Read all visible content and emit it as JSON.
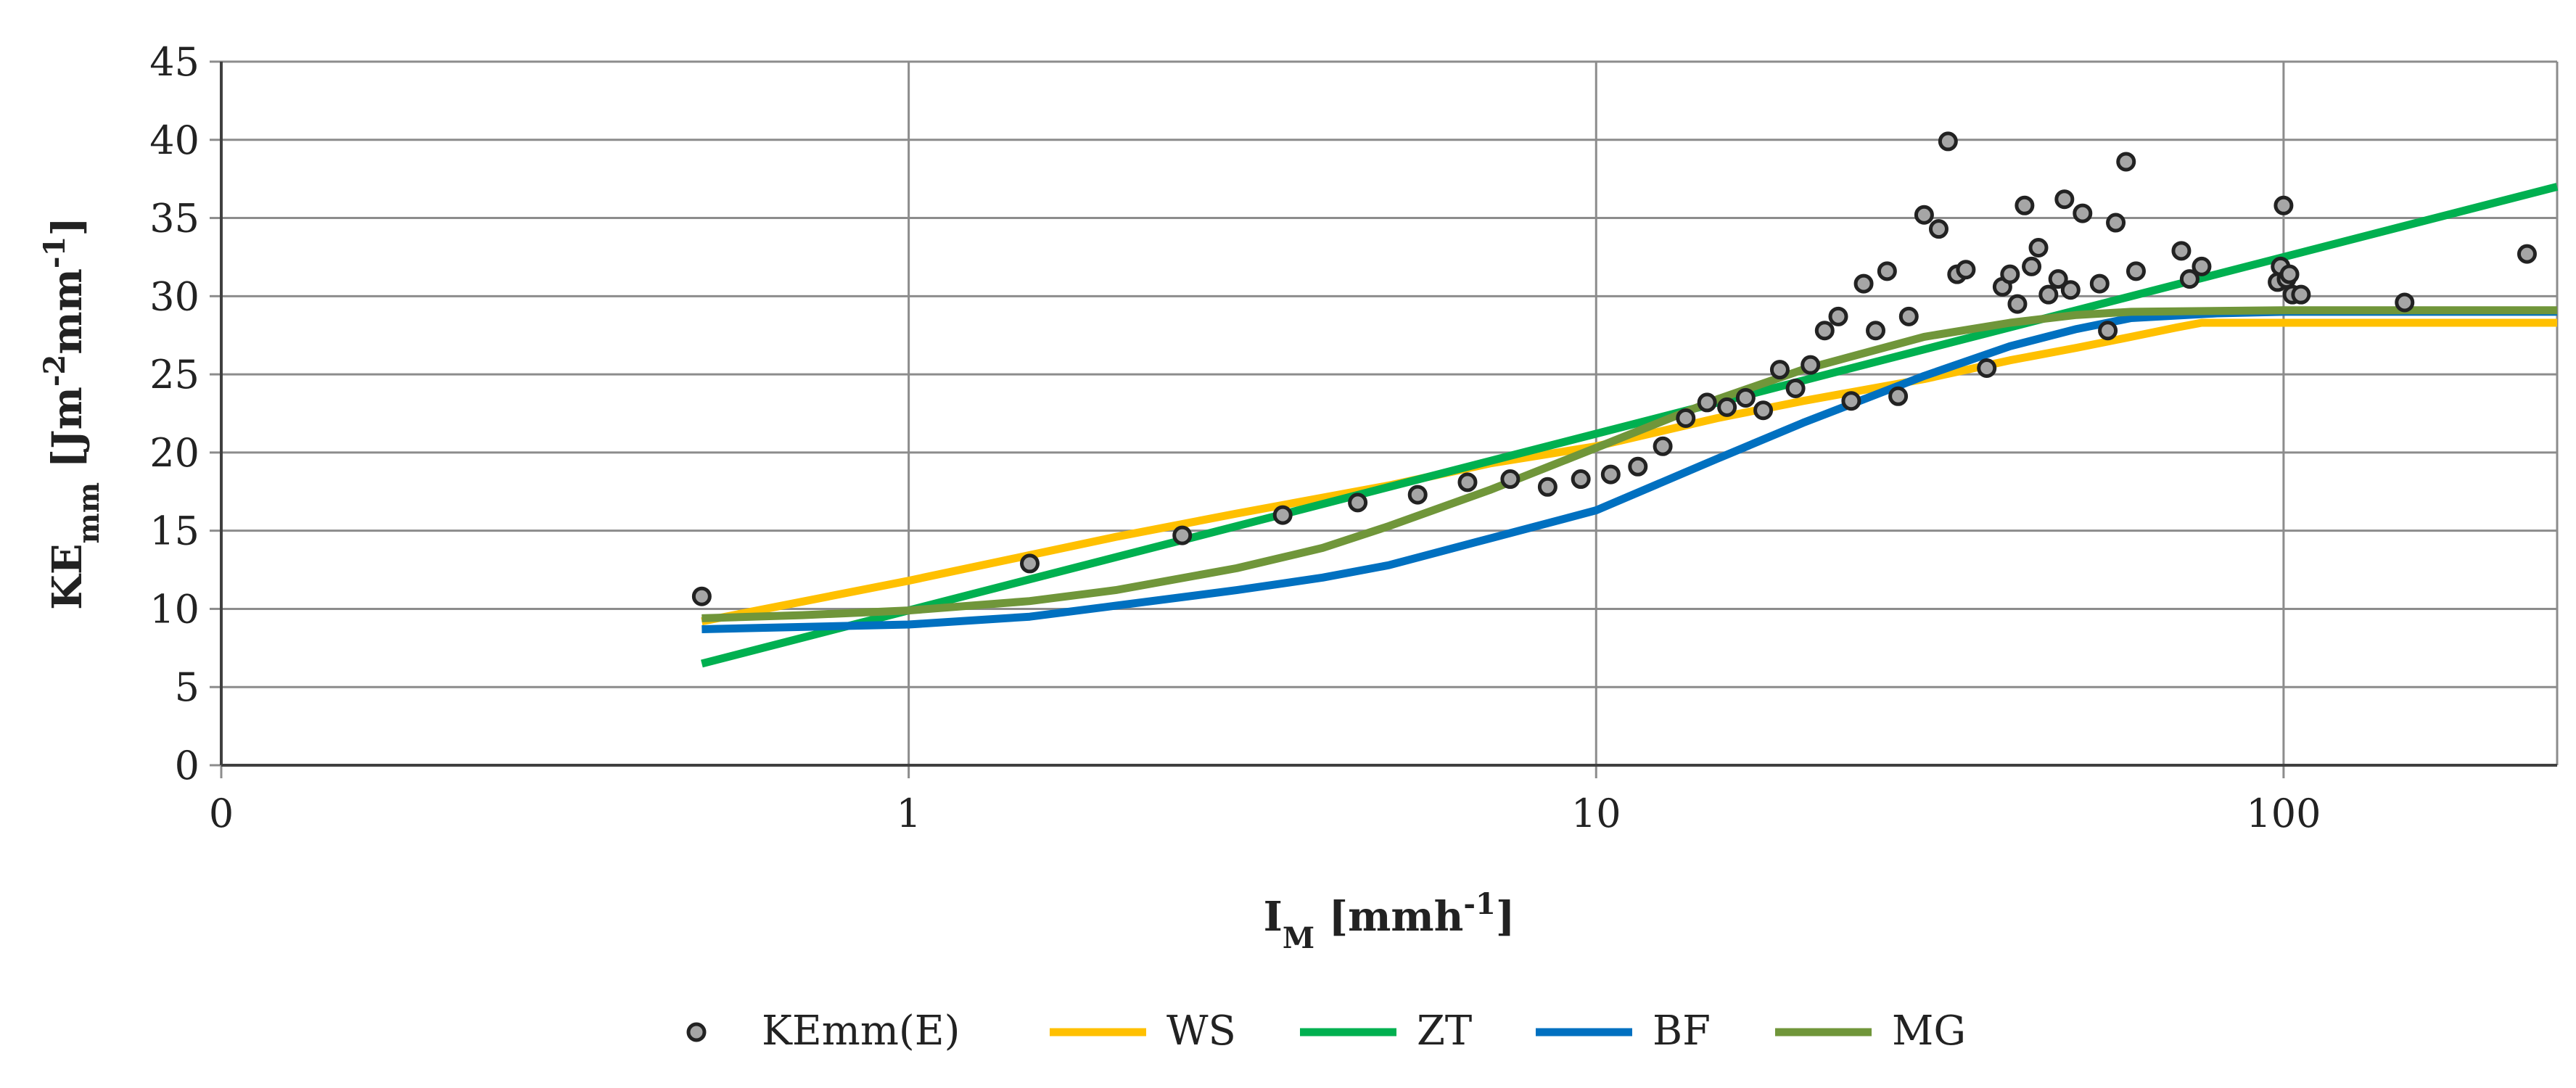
{
  "chart_data": {
    "type": "scatter",
    "x_scale": "log",
    "xlim": [
      0.1,
      250
    ],
    "ylim": [
      0,
      45
    ],
    "x_ticks": [
      0.1,
      1,
      10,
      100
    ],
    "x_tick_labels": [
      "0",
      "1",
      "10",
      "100"
    ],
    "y_ticks": [
      0,
      5,
      10,
      15,
      20,
      25,
      30,
      35,
      40,
      45
    ],
    "y_tick_labels": [
      "0",
      "5",
      "10",
      "15",
      "20",
      "25",
      "30",
      "35",
      "40",
      "45"
    ],
    "grid": true,
    "xlabel": {
      "main": "I",
      "sub": "M",
      "rest": " [mmh",
      "sup": "-1",
      "end": "]"
    },
    "ylabel": {
      "main": "KE",
      "sub": "mm",
      "p1": " [Jm",
      "sup1": "-2",
      "p2": "mm",
      "sup2": "-1",
      "end": "]"
    },
    "legend_position": "bottom",
    "series": [
      {
        "name": "KEmm(E)",
        "kind": "scatter",
        "color": "#a6a6a6",
        "points": [
          [
            0.5,
            10.8
          ],
          [
            1.5,
            12.9
          ],
          [
            2.5,
            14.7
          ],
          [
            3.5,
            16.0
          ],
          [
            4.5,
            16.8
          ],
          [
            5.5,
            17.3
          ],
          [
            6.5,
            18.1
          ],
          [
            7.5,
            18.3
          ],
          [
            8.5,
            17.8
          ],
          [
            9.5,
            18.3
          ],
          [
            10.5,
            18.6
          ],
          [
            11.5,
            19.1
          ],
          [
            12.5,
            20.4
          ],
          [
            13.5,
            22.2
          ],
          [
            14.5,
            23.2
          ],
          [
            15.5,
            22.9
          ],
          [
            16.5,
            23.5
          ],
          [
            17.5,
            22.7
          ],
          [
            18.5,
            25.3
          ],
          [
            19.5,
            24.1
          ],
          [
            20.5,
            25.6
          ],
          [
            21.5,
            27.8
          ],
          [
            22.5,
            28.7
          ],
          [
            23.5,
            23.3
          ],
          [
            24.5,
            30.8
          ],
          [
            25.5,
            27.8
          ],
          [
            26.5,
            31.6
          ],
          [
            27.5,
            23.6
          ],
          [
            28.5,
            28.7
          ],
          [
            30.0,
            35.2
          ],
          [
            31.5,
            34.3
          ],
          [
            32.5,
            39.9
          ],
          [
            33.5,
            31.4
          ],
          [
            34.5,
            31.7
          ],
          [
            37.0,
            25.4
          ],
          [
            39.0,
            30.6
          ],
          [
            40.0,
            31.4
          ],
          [
            41.0,
            29.5
          ],
          [
            42.0,
            35.8
          ],
          [
            43.0,
            31.9
          ],
          [
            44.0,
            33.1
          ],
          [
            45.5,
            30.1
          ],
          [
            47.0,
            31.1
          ],
          [
            48.0,
            36.2
          ],
          [
            49.0,
            30.4
          ],
          [
            51.0,
            35.3
          ],
          [
            54.0,
            30.8
          ],
          [
            55.5,
            27.8
          ],
          [
            57.0,
            34.7
          ],
          [
            59.0,
            38.6
          ],
          [
            61.0,
            31.6
          ],
          [
            71.0,
            32.9
          ],
          [
            73.0,
            31.1
          ],
          [
            76.0,
            31.9
          ],
          [
            98.0,
            30.9
          ],
          [
            99.0,
            31.9
          ],
          [
            100.0,
            35.8
          ],
          [
            101.0,
            31.1
          ],
          [
            102.0,
            31.4
          ],
          [
            103.0,
            30.1
          ],
          [
            106.0,
            30.1
          ],
          [
            150.0,
            29.6
          ],
          [
            226.0,
            32.7
          ]
        ]
      },
      {
        "name": "WS",
        "kind": "line",
        "color": "#ffc000",
        "points": [
          [
            0.5,
            9.2
          ],
          [
            1,
            11.8
          ],
          [
            2,
            14.6
          ],
          [
            3,
            16.1
          ],
          [
            5,
            17.9
          ],
          [
            7,
            19.3
          ],
          [
            10,
            20.4
          ],
          [
            15,
            22.2
          ],
          [
            20,
            23.3
          ],
          [
            30,
            24.7
          ],
          [
            40,
            25.9
          ],
          [
            50,
            26.7
          ],
          [
            60,
            27.4
          ],
          [
            70,
            28.0
          ],
          [
            76,
            28.3
          ],
          [
            100,
            28.3
          ],
          [
            250,
            28.3
          ]
        ]
      },
      {
        "name": "ZT",
        "kind": "line",
        "color": "#00b050",
        "points": [
          [
            0.5,
            6.5
          ],
          [
            250,
            37.0
          ]
        ]
      },
      {
        "name": "BF",
        "kind": "line",
        "color": "#0070c0",
        "points": [
          [
            0.5,
            8.7
          ],
          [
            1,
            9.0
          ],
          [
            1.5,
            9.5
          ],
          [
            2,
            10.2
          ],
          [
            3,
            11.2
          ],
          [
            4,
            12.0
          ],
          [
            5,
            12.8
          ],
          [
            7,
            14.5
          ],
          [
            10,
            16.3
          ],
          [
            15,
            19.6
          ],
          [
            20,
            21.9
          ],
          [
            30,
            24.9
          ],
          [
            40,
            26.8
          ],
          [
            50,
            27.9
          ],
          [
            60,
            28.6
          ],
          [
            80,
            28.9
          ],
          [
            100,
            29.0
          ],
          [
            250,
            29.0
          ]
        ]
      },
      {
        "name": "MG",
        "kind": "line",
        "color": "#70963a",
        "points": [
          [
            0.5,
            9.4
          ],
          [
            0.7,
            9.6
          ],
          [
            1,
            9.9
          ],
          [
            1.5,
            10.5
          ],
          [
            2,
            11.2
          ],
          [
            3,
            12.6
          ],
          [
            4,
            13.9
          ],
          [
            5,
            15.3
          ],
          [
            7,
            17.6
          ],
          [
            10,
            20.3
          ],
          [
            15,
            23.4
          ],
          [
            20,
            25.3
          ],
          [
            30,
            27.4
          ],
          [
            40,
            28.3
          ],
          [
            50,
            28.8
          ],
          [
            60,
            29.0
          ],
          [
            100,
            29.1
          ],
          [
            250,
            29.1
          ]
        ]
      }
    ]
  }
}
